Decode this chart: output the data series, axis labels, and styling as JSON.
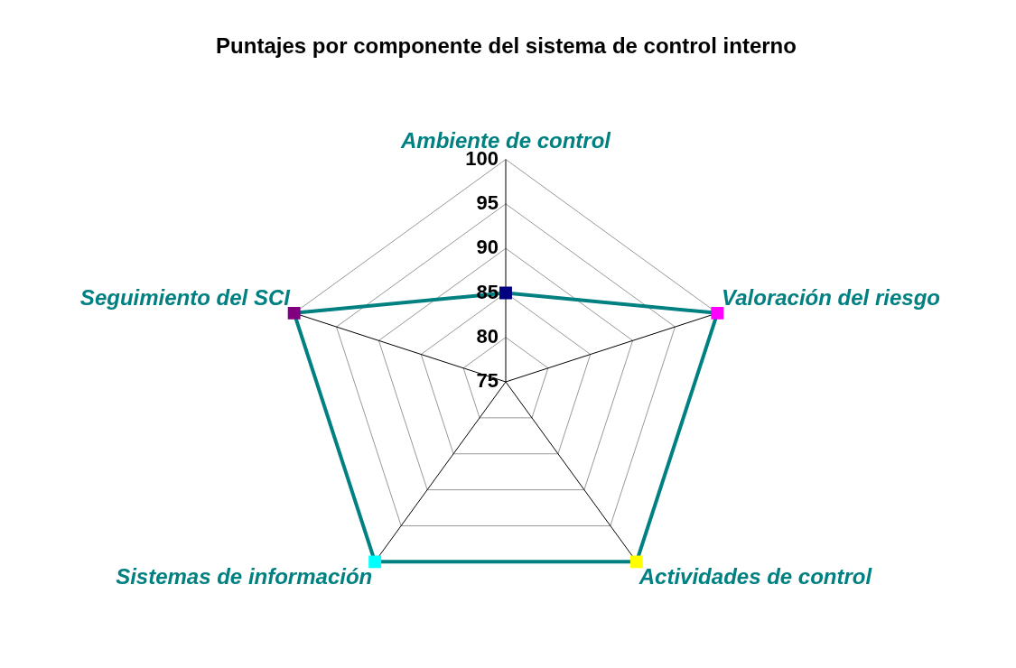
{
  "chart_data": {
    "type": "radar",
    "title": "Puntajes por componente del sistema de control interno",
    "categories": [
      "Ambiente de control",
      "Valoración del riesgo",
      "Actividades de control",
      "Sistemas de información",
      "Seguimiento del SCI"
    ],
    "series": [
      {
        "color": "#008080",
        "values": [
          85,
          100,
          100,
          100,
          100
        ],
        "colors": [
          "#000080",
          "#ff00ff",
          "#ffff00",
          "#00ffff",
          "#800080"
        ]
      }
    ],
    "ylim": [
      75,
      100
    ],
    "yticks": [
      75,
      80,
      85,
      90,
      95,
      100
    ],
    "grid": true,
    "legend": false,
    "marker": "square"
  }
}
